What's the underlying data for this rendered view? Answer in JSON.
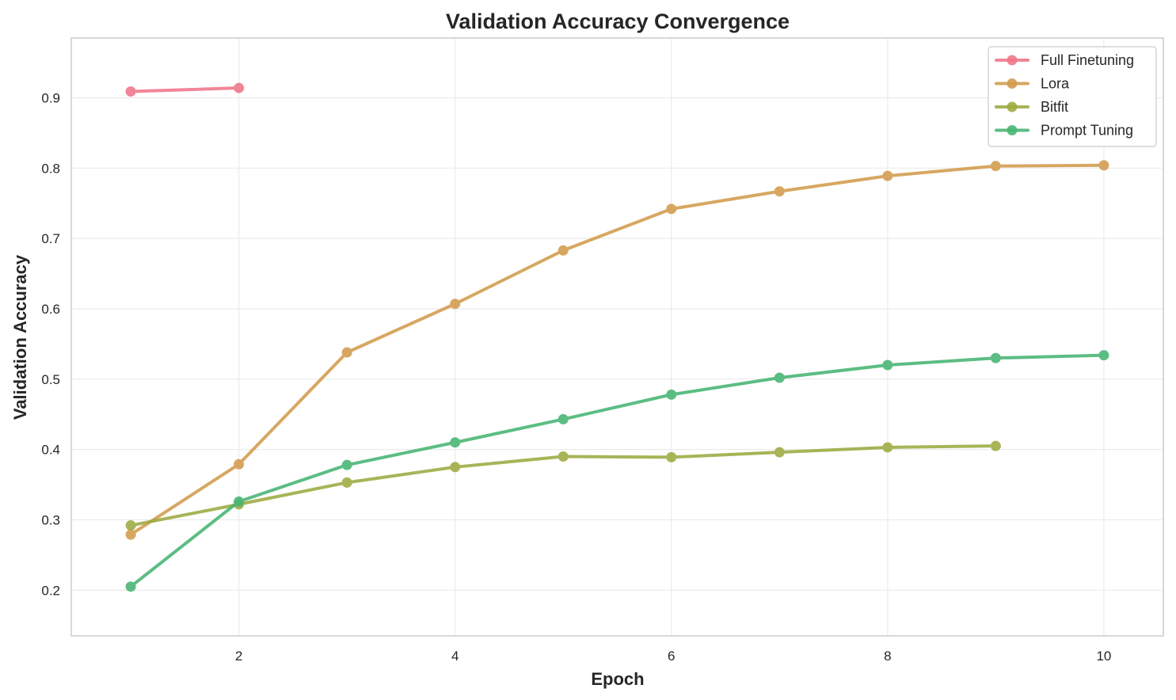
{
  "chart_data": {
    "type": "line",
    "title": "Validation Accuracy Convergence",
    "xlabel": "Epoch",
    "ylabel": "Validation Accuracy",
    "xlim": [
      0.45,
      10.55
    ],
    "ylim": [
      0.135,
      0.985
    ],
    "xticks": [
      2,
      4,
      6,
      8,
      10
    ],
    "yticks": [
      0.2,
      0.3,
      0.4,
      0.5,
      0.6,
      0.7,
      0.8,
      0.9
    ],
    "grid": true,
    "legend_position": "top-right",
    "series": [
      {
        "name": "Full Finetuning",
        "color": "#f0758a",
        "x": [
          1,
          2
        ],
        "values": [
          0.909,
          0.914
        ]
      },
      {
        "name": "Lora",
        "color": "#d29b4c",
        "x": [
          1,
          2,
          3,
          4,
          5,
          6,
          7,
          8,
          9,
          10
        ],
        "values": [
          0.279,
          0.379,
          0.538,
          0.607,
          0.683,
          0.742,
          0.767,
          0.789,
          0.803,
          0.804
        ]
      },
      {
        "name": "Bitfit",
        "color": "#9daa40",
        "x": [
          1,
          2,
          3,
          4,
          5,
          6,
          7,
          8,
          9
        ],
        "values": [
          0.292,
          0.322,
          0.353,
          0.375,
          0.39,
          0.389,
          0.396,
          0.403,
          0.405
        ]
      },
      {
        "name": "Prompt Tuning",
        "color": "#46b573",
        "x": [
          1,
          2,
          3,
          4,
          5,
          6,
          7,
          8,
          9,
          10
        ],
        "values": [
          0.205,
          0.326,
          0.378,
          0.41,
          0.443,
          0.478,
          0.502,
          0.52,
          0.53,
          0.534
        ]
      }
    ]
  }
}
